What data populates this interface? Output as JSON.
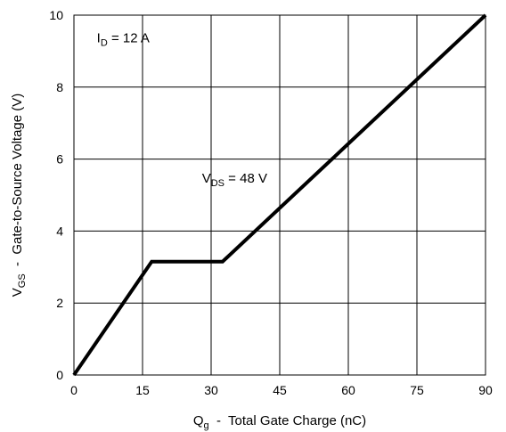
{
  "chart_data": {
    "type": "line",
    "title": "",
    "xlabel": {
      "main": "Q",
      "sub": "g",
      "rest": "  -  Total Gate Charge (nC)"
    },
    "ylabel": {
      "main": "V",
      "sub": "GS",
      "rest": "  -  Gate-to-Source Voltage (V)"
    },
    "xlim": [
      0,
      90
    ],
    "ylim": [
      0,
      10
    ],
    "x_ticks": [
      0,
      15,
      30,
      45,
      60,
      75,
      90
    ],
    "y_ticks": [
      0,
      2,
      4,
      6,
      8,
      10
    ],
    "grid": true,
    "series": [
      {
        "x": [
          0,
          17,
          32.5,
          90
        ],
        "y": [
          0,
          3.15,
          3.15,
          10
        ],
        "color": "#000000"
      }
    ],
    "annotations": [
      {
        "id": "id",
        "main": "I",
        "sub": "D",
        "rest": " = 12 A",
        "x": 5,
        "y": 9.25
      },
      {
        "id": "vds",
        "main": "V",
        "sub": "DS",
        "rest": " = 48 V",
        "x": 28,
        "y": 5.35
      }
    ]
  }
}
